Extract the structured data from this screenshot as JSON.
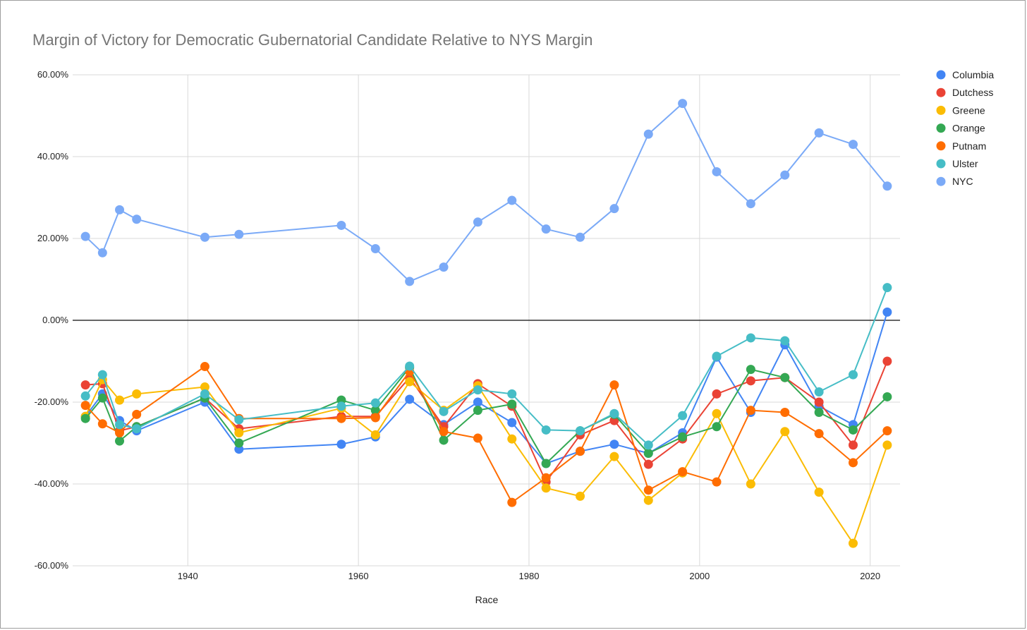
{
  "chart_data": {
    "type": "line",
    "title": "Margin of Victory for Democratic Gubernatorial Candidate Relative to NYS Margin",
    "xlabel": "Race",
    "ylabel": "",
    "xlim": [
      1926.5,
      2023.5
    ],
    "ylim": [
      -60,
      60
    ],
    "x_ticks": [
      1940,
      1960,
      1980,
      2000,
      2020
    ],
    "y_ticks": [
      60,
      40,
      20,
      0,
      -20,
      -40,
      -60
    ],
    "y_tick_labels": [
      "60.00%",
      "40.00%",
      "20.00%",
      "0.00%",
      "-20.00%",
      "-40.00%",
      "-60.00%"
    ],
    "grid": true,
    "legend_position": "right",
    "x": [
      1928,
      1930,
      1932,
      1934,
      1942,
      1946,
      1958,
      1962,
      1966,
      1970,
      1974,
      1978,
      1982,
      1986,
      1990,
      1994,
      1998,
      2002,
      2006,
      2010,
      2014,
      2018,
      2022
    ],
    "series": [
      {
        "name": "Columbia",
        "color": "#4285F4",
        "values": [
          -23.5,
          -18,
          -24.5,
          -27,
          -20,
          -31.5,
          -30.3,
          -28.5,
          -19.3,
          -25.5,
          -20,
          -25,
          -35,
          -32,
          -30.3,
          -32.5,
          -27.5,
          -9,
          -22.5,
          -6,
          -21,
          -25.5,
          2
        ]
      },
      {
        "name": "Dutchess",
        "color": "#EA4335",
        "values": [
          -15.8,
          -15.5,
          -27,
          -26,
          -19,
          -26.5,
          -23.5,
          -23.5,
          -14,
          -26,
          -15.5,
          -21,
          -39.5,
          -28,
          -24.5,
          -35.2,
          -29,
          -18,
          -14.8,
          -14,
          -20,
          -30.5,
          -10
        ]
      },
      {
        "name": "Greene",
        "color": "#FBBC04",
        "values": [
          -23.5,
          -14.5,
          -19.5,
          -18,
          -16.3,
          -27.5,
          -21.5,
          -28,
          -15,
          -22,
          -16,
          -29,
          -41,
          -43,
          -33.3,
          -44,
          -37.3,
          -22.8,
          -40,
          -27.2,
          -42,
          -54.5,
          -30.5
        ]
      },
      {
        "name": "Orange",
        "color": "#34A853",
        "values": [
          -24,
          -19,
          -29.5,
          -26,
          -19,
          -30,
          -19.5,
          -22,
          -11.5,
          -29.3,
          -22,
          -20.5,
          -35,
          -27,
          -23,
          -32.5,
          -28.5,
          -26,
          -12,
          -14,
          -22.5,
          -26.8,
          -18.7
        ]
      },
      {
        "name": "Putnam",
        "color": "#FF6D01",
        "values": [
          -20.8,
          -25.3,
          -27.5,
          -23,
          -11.3,
          -24,
          -24,
          -23.8,
          -12.5,
          -27.2,
          -28.8,
          -44.5,
          -38.5,
          -32,
          -15.8,
          -41.5,
          -37,
          -39.5,
          -22,
          -22.5,
          -27.7,
          -34.8,
          -27
        ]
      },
      {
        "name": "Ulster",
        "color": "#46BDC6",
        "values": [
          -18.5,
          -13.3,
          -25.5,
          -26.5,
          -18,
          -24.3,
          -21,
          -20.2,
          -11.2,
          -22.3,
          -17,
          -18,
          -26.8,
          -27,
          -22.8,
          -30.5,
          -23.3,
          -8.8,
          -4.3,
          -5,
          -17.5,
          -13.3,
          8
        ]
      },
      {
        "name": "NYC",
        "color": "#7BAAF7",
        "values": [
          20.5,
          16.5,
          27,
          24.7,
          20.3,
          21,
          23.2,
          17.5,
          9.5,
          13,
          24,
          29.3,
          22.3,
          20.3,
          27.3,
          45.5,
          53,
          36.3,
          28.5,
          35.5,
          45.8,
          43,
          32.8
        ]
      }
    ]
  }
}
